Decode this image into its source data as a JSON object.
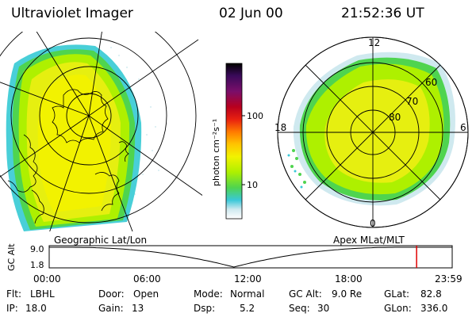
{
  "header": {
    "instrument": "Ultraviolet Imager",
    "date": "02 Jun 00",
    "time": "21:52:36 UT"
  },
  "panels": {
    "left_label": "Geographic Lat/Lon",
    "right_label": "Apex MLat/MLT"
  },
  "colorbar": {
    "unit_label": "photon cm⁻²s⁻¹",
    "ticks": [
      "100",
      "10"
    ],
    "colors": [
      "#000000",
      "#3a0a5a",
      "#7a0e6a",
      "#b8001e",
      "#e82010",
      "#ff7a00",
      "#ffc400",
      "#f2f200",
      "#aef000",
      "#4fd44f",
      "#3ac8d8",
      "#cfe9ef",
      "#ffffff"
    ]
  },
  "apex": {
    "mlt_labels": [
      "12",
      "18",
      "6",
      "0"
    ],
    "lat_labels": [
      "60",
      "70",
      "80"
    ]
  },
  "timeline": {
    "ylabel": "GC Alt",
    "ymax": "9.0",
    "ymin": "1.8",
    "x_ticks": [
      "00:00",
      "06:00",
      "12:00",
      "18:00",
      "23:59"
    ],
    "marker_hours": 21.88
  },
  "info": {
    "r1": [
      {
        "key": "Flt:",
        "val": "LBHL"
      },
      {
        "key": "Door:",
        "val": "Open"
      },
      {
        "key": "Mode:",
        "val": "Normal"
      },
      {
        "key": "GC Alt:",
        "val": "9.0 Re"
      },
      {
        "key": "GLat:",
        "val": "82.8"
      }
    ],
    "r2": [
      {
        "key": "IP:",
        "val": "18.0"
      },
      {
        "key": "Gain:",
        "val": "13"
      },
      {
        "key": "Dsp:",
        "val": "5.2"
      },
      {
        "key": "Seq:",
        "val": "30"
      },
      {
        "key": "GLon:",
        "val": "336.0"
      }
    ]
  }
}
